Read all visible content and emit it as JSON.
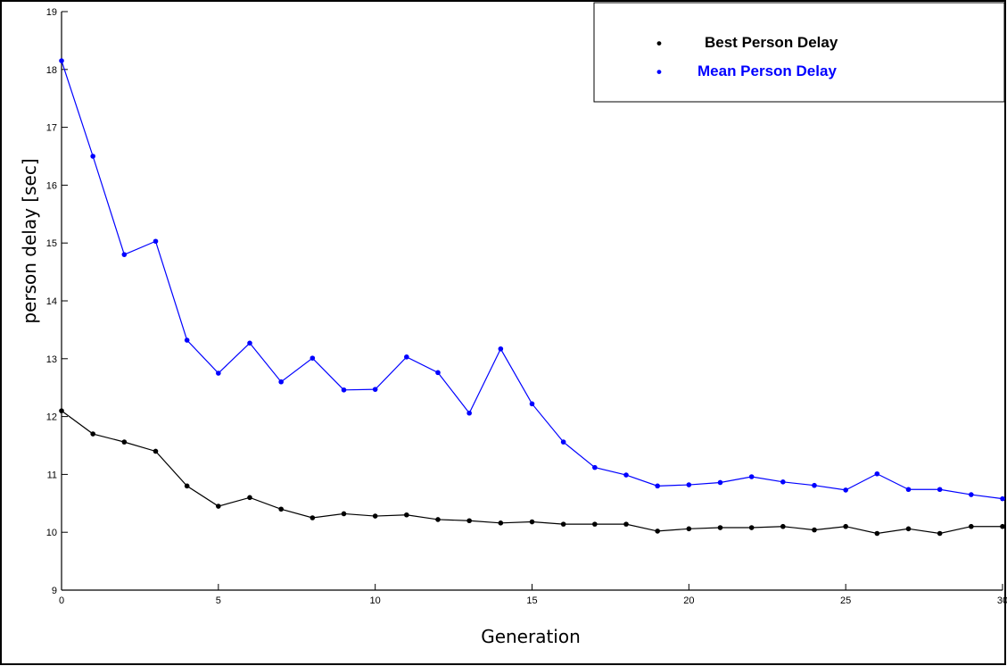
{
  "chart_data": {
    "type": "line",
    "title": "",
    "xlabel": "Generation",
    "ylabel": "person delay [sec]",
    "xlim": [
      0,
      30
    ],
    "ylim": [
      9,
      19
    ],
    "xticks": [
      "0",
      "5",
      "10",
      "15",
      "20",
      "25",
      "30"
    ],
    "yticks": [
      "9",
      "10",
      "11",
      "12",
      "13",
      "14",
      "15",
      "16",
      "17",
      "18",
      "19"
    ],
    "grid": false,
    "legend_position": "top-right",
    "x": [
      0,
      1,
      2,
      3,
      4,
      5,
      6,
      7,
      8,
      9,
      10,
      11,
      12,
      13,
      14,
      15,
      16,
      17,
      18,
      19,
      20,
      21,
      22,
      23,
      24,
      25,
      26,
      27,
      28,
      29,
      30
    ],
    "series": [
      {
        "name": "Best Person Delay",
        "color": "#000000",
        "values": [
          12.1,
          11.7,
          11.56,
          11.4,
          10.8,
          10.45,
          10.6,
          10.4,
          10.25,
          10.32,
          10.28,
          10.3,
          10.22,
          10.2,
          10.16,
          10.18,
          10.14,
          10.14,
          10.14,
          10.02,
          10.06,
          10.08,
          10.08,
          10.1,
          10.04,
          10.1,
          9.98,
          10.06,
          9.98,
          10.1,
          10.1
        ]
      },
      {
        "name": "Mean Person Delay",
        "color": "#0000ff",
        "values": [
          18.15,
          16.5,
          14.8,
          15.03,
          13.32,
          12.75,
          13.27,
          12.6,
          13.01,
          12.46,
          12.47,
          13.03,
          12.76,
          12.06,
          13.17,
          12.22,
          11.56,
          11.12,
          10.99,
          10.8,
          10.82,
          10.86,
          10.96,
          10.87,
          10.81,
          10.73,
          11.01,
          10.74,
          10.74,
          10.65,
          10.58
        ]
      }
    ]
  },
  "legend": {
    "bullet": "•",
    "items": [
      {
        "label": "Best Person Delay",
        "color": "#000000"
      },
      {
        "label": "Mean Person Delay",
        "color": "#0000ff"
      }
    ]
  }
}
